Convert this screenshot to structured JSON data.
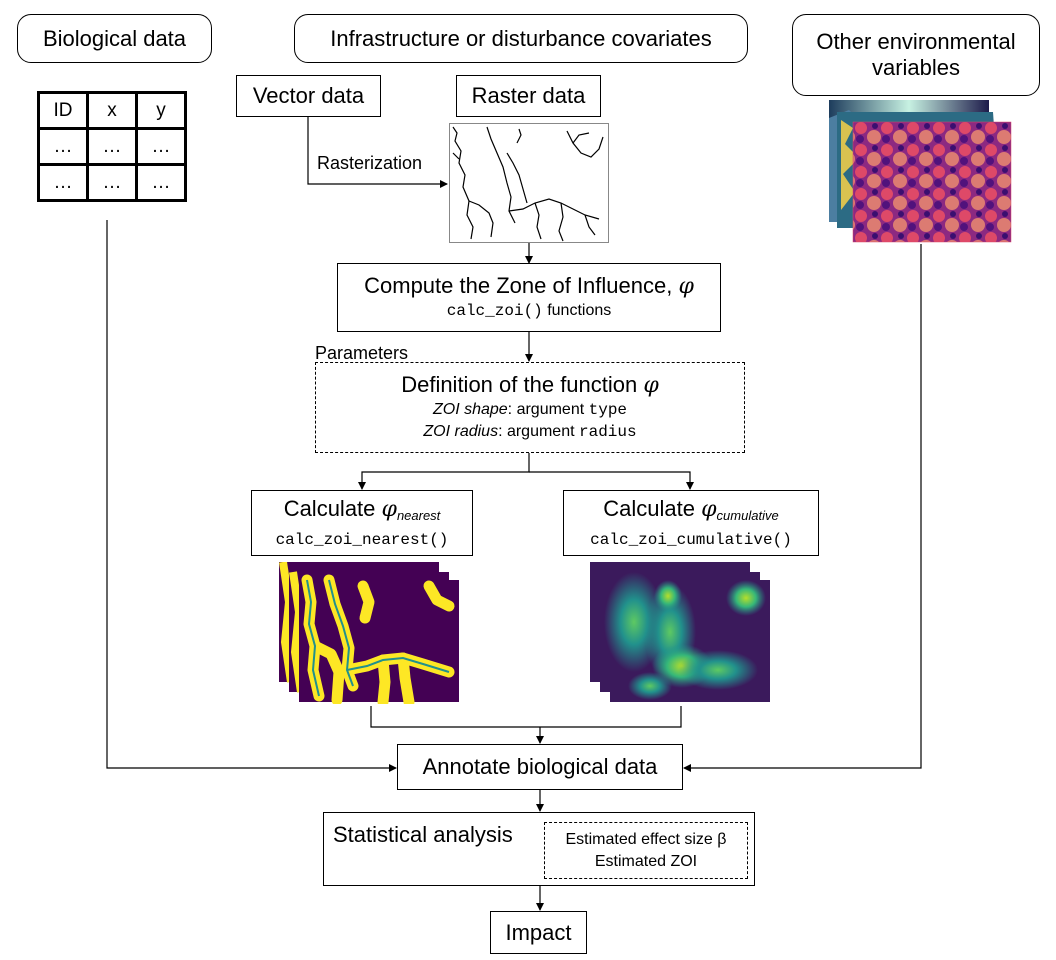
{
  "nodes": {
    "biological_data": "Biological data",
    "infrastructure": "Infrastructure or disturbance covariates",
    "other_env": "Other environmental variables",
    "vector_data": "Vector data",
    "raster_data": "Raster data",
    "rasterization": "Rasterization",
    "compute_zoi": {
      "title": "Compute the Zone of Influence,",
      "phi": "φ",
      "func": "calc_zoi()",
      "func_suffix": " functions"
    },
    "parameters": "Parameters",
    "definition": {
      "title": "Definition of the function",
      "phi": "φ",
      "shape_label": "ZOI shape",
      "shape_text": ": argument ",
      "shape_arg": "type",
      "radius_label": "ZOI radius",
      "radius_text": ": argument ",
      "radius_arg": "radius"
    },
    "calc_nearest": {
      "title": "Calculate",
      "phi": "φ",
      "sub": "nearest",
      "func": "calc_zoi_nearest()"
    },
    "calc_cumulative": {
      "title": "Calculate",
      "phi": "φ",
      "sub": "cumulative",
      "func": "calc_zoi_cumulative()"
    },
    "annotate": "Annotate biological data",
    "statistical": "Statistical analysis",
    "estimates": {
      "line1": "Estimated effect size β",
      "line2": "Estimated ZOI"
    },
    "impact": "Impact"
  },
  "bio_table": {
    "headers": [
      "ID",
      "x",
      "y"
    ],
    "rows": [
      [
        "…",
        "…",
        "…"
      ],
      [
        "…",
        "…",
        "…"
      ]
    ]
  },
  "colors": {
    "viridis_dark": "#440154",
    "viridis_teal": "#21918c",
    "viridis_green": "#5ec962",
    "viridis_yellow": "#fde725",
    "magma_dark": "#3b0f70",
    "magma_purple": "#8c2981",
    "magma_pink": "#de4968",
    "magma_orange": "#fe9f6d"
  }
}
